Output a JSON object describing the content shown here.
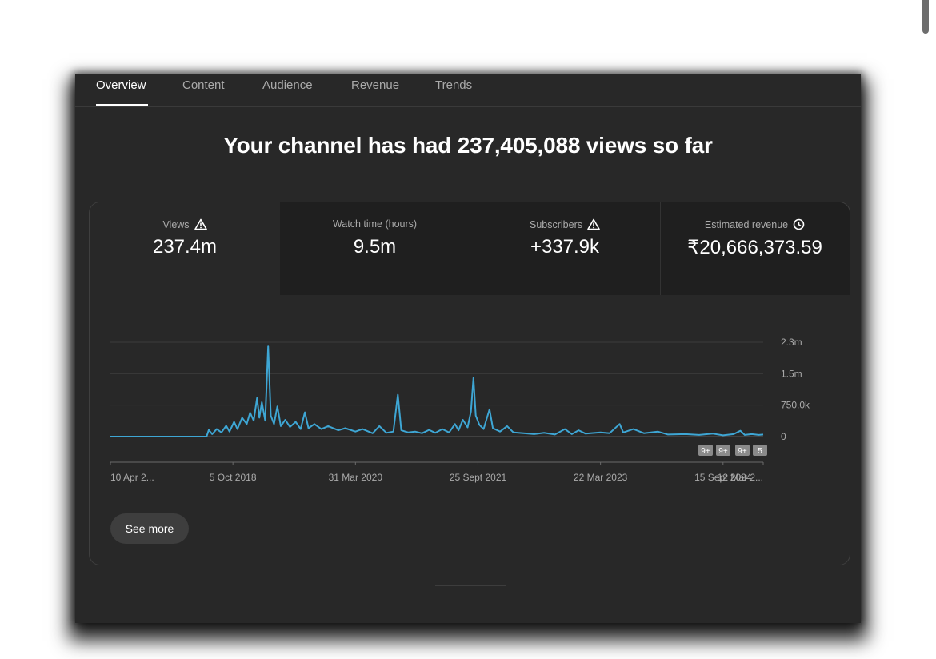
{
  "tabs": [
    "Overview",
    "Content",
    "Audience",
    "Revenue",
    "Trends"
  ],
  "headline": "Your channel has had 237,405,088 views so far",
  "metrics": [
    {
      "label": "Views",
      "value": "237.4m",
      "icon": "warning-icon"
    },
    {
      "label": "Watch time (hours)",
      "value": "9.5m",
      "icon": ""
    },
    {
      "label": "Subscribers",
      "value": "+337.9k",
      "icon": "warning-icon"
    },
    {
      "label": "Estimated revenue",
      "value": "₹20,666,373.59",
      "icon": "clock-icon"
    }
  ],
  "see_more_label": "See more",
  "colors": {
    "line": "#3ea6d4",
    "background": "#282828",
    "card_tab": "#1f1f1f"
  },
  "chart_data": {
    "type": "line",
    "title": "",
    "xlabel": "",
    "ylabel": "",
    "y_ticks": [
      {
        "value": 0,
        "label": "0"
      },
      {
        "value": 750000,
        "label": "750.0k"
      },
      {
        "value": 1500000,
        "label": "1.5m"
      },
      {
        "value": 2250000,
        "label": "2.3m"
      }
    ],
    "ylim": [
      0,
      2250000
    ],
    "x_range": [
      "2017-04-10",
      "2025-03-12"
    ],
    "x_tick_labels": [
      {
        "date": "2017-04-10",
        "label": "10 Apr 2..."
      },
      {
        "date": "2018-10-05",
        "label": "5 Oct 2018"
      },
      {
        "date": "2020-03-31",
        "label": "31 Mar 2020"
      },
      {
        "date": "2021-09-25",
        "label": "25 Sept 2021"
      },
      {
        "date": "2023-03-22",
        "label": "22 Mar 2023"
      },
      {
        "date": "2024-09-15",
        "label": "15 Sept 2024"
      },
      {
        "date": "2025-03-12",
        "label": "12 Mar 2..."
      }
    ],
    "annotation_badges": [
      "9+",
      "9+",
      "9+",
      "5"
    ],
    "series": [
      {
        "name": "",
        "points": [
          [
            "2017-04-10",
            0
          ],
          [
            "2018-03-01",
            0
          ],
          [
            "2018-06-10",
            0
          ],
          [
            "2018-06-20",
            160000
          ],
          [
            "2018-07-05",
            60000
          ],
          [
            "2018-07-25",
            180000
          ],
          [
            "2018-08-15",
            100000
          ],
          [
            "2018-09-05",
            260000
          ],
          [
            "2018-09-20",
            120000
          ],
          [
            "2018-10-10",
            350000
          ],
          [
            "2018-10-25",
            180000
          ],
          [
            "2018-11-15",
            450000
          ],
          [
            "2018-12-05",
            300000
          ],
          [
            "2018-12-20",
            570000
          ],
          [
            "2019-01-05",
            380000
          ],
          [
            "2019-01-20",
            920000
          ],
          [
            "2019-01-30",
            450000
          ],
          [
            "2019-02-10",
            820000
          ],
          [
            "2019-02-25",
            380000
          ],
          [
            "2019-03-10",
            2150000
          ],
          [
            "2019-03-22",
            500000
          ],
          [
            "2019-04-05",
            300000
          ],
          [
            "2019-04-20",
            720000
          ],
          [
            "2019-05-05",
            250000
          ],
          [
            "2019-05-25",
            400000
          ],
          [
            "2019-06-15",
            230000
          ],
          [
            "2019-07-10",
            350000
          ],
          [
            "2019-08-01",
            180000
          ],
          [
            "2019-08-20",
            580000
          ],
          [
            "2019-09-05",
            200000
          ],
          [
            "2019-10-01",
            300000
          ],
          [
            "2019-11-01",
            180000
          ],
          [
            "2019-12-01",
            250000
          ],
          [
            "2020-01-15",
            150000
          ],
          [
            "2020-02-15",
            200000
          ],
          [
            "2020-03-31",
            120000
          ],
          [
            "2020-05-01",
            180000
          ],
          [
            "2020-06-15",
            80000
          ],
          [
            "2020-07-15",
            250000
          ],
          [
            "2020-08-15",
            90000
          ],
          [
            "2020-09-15",
            120000
          ],
          [
            "2020-10-05",
            1000000
          ],
          [
            "2020-10-20",
            150000
          ],
          [
            "2020-11-20",
            100000
          ],
          [
            "2020-12-20",
            120000
          ],
          [
            "2021-01-20",
            80000
          ],
          [
            "2021-02-20",
            160000
          ],
          [
            "2021-03-20",
            90000
          ],
          [
            "2021-04-20",
            180000
          ],
          [
            "2021-05-20",
            100000
          ],
          [
            "2021-06-15",
            300000
          ],
          [
            "2021-07-01",
            150000
          ],
          [
            "2021-07-20",
            400000
          ],
          [
            "2021-08-10",
            220000
          ],
          [
            "2021-08-25",
            600000
          ],
          [
            "2021-09-05",
            1400000
          ],
          [
            "2021-09-15",
            500000
          ],
          [
            "2021-10-01",
            280000
          ],
          [
            "2021-10-20",
            180000
          ],
          [
            "2021-11-15",
            650000
          ],
          [
            "2021-11-30",
            200000
          ],
          [
            "2022-01-01",
            120000
          ],
          [
            "2022-02-01",
            250000
          ],
          [
            "2022-03-01",
            100000
          ],
          [
            "2022-04-15",
            80000
          ],
          [
            "2022-06-01",
            60000
          ],
          [
            "2022-07-15",
            90000
          ],
          [
            "2022-09-01",
            50000
          ],
          [
            "2022-10-15",
            180000
          ],
          [
            "2022-11-15",
            60000
          ],
          [
            "2022-12-15",
            150000
          ],
          [
            "2023-01-15",
            70000
          ],
          [
            "2023-03-22",
            100000
          ],
          [
            "2023-05-01",
            80000
          ],
          [
            "2023-06-15",
            300000
          ],
          [
            "2023-07-01",
            100000
          ],
          [
            "2023-08-15",
            180000
          ],
          [
            "2023-10-01",
            80000
          ],
          [
            "2023-12-01",
            120000
          ],
          [
            "2024-01-15",
            50000
          ],
          [
            "2024-04-01",
            60000
          ],
          [
            "2024-06-01",
            40000
          ],
          [
            "2024-08-01",
            70000
          ],
          [
            "2024-09-15",
            30000
          ],
          [
            "2024-11-01",
            60000
          ],
          [
            "2024-12-01",
            140000
          ],
          [
            "2024-12-20",
            40000
          ],
          [
            "2025-01-20",
            60000
          ],
          [
            "2025-02-20",
            40000
          ],
          [
            "2025-03-12",
            50000
          ]
        ]
      }
    ]
  }
}
